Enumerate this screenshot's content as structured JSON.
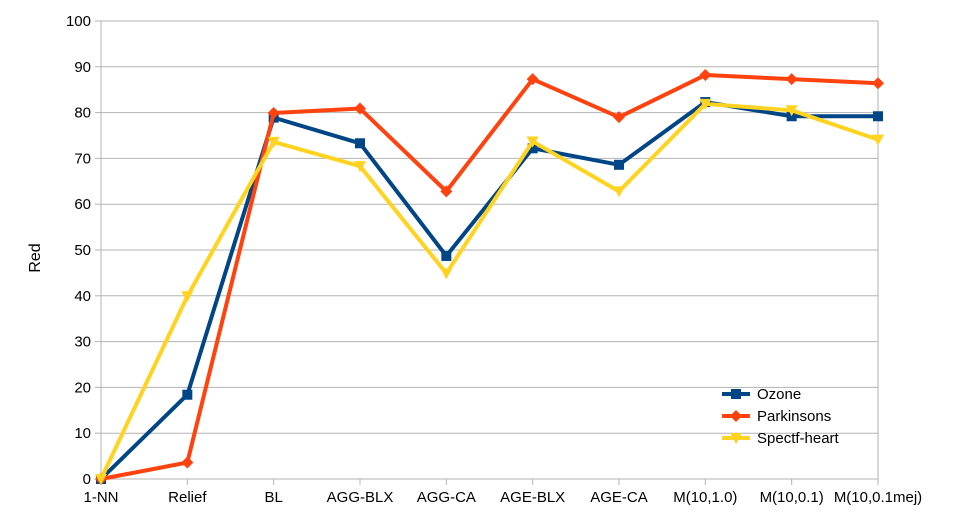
{
  "chart_data": {
    "type": "line",
    "title": "",
    "xlabel": "",
    "ylabel": "Red",
    "ylim": [
      0,
      100
    ],
    "yticks": [
      0,
      10,
      20,
      30,
      40,
      50,
      60,
      70,
      80,
      90,
      100
    ],
    "grid": "horizontal",
    "legend_position": "bottom-right",
    "categories": [
      "1-NN",
      "Relief",
      "BL",
      "AGG-BLX",
      "AGG-CA",
      "AGE-BLX",
      "AGE-CA",
      "M(10,1.0)",
      "M(10,0.1)",
      "M(10,0.1mej)"
    ],
    "series": [
      {
        "name": "Ozone",
        "color": "#004586",
        "marker": "square",
        "values": [
          0,
          18.4,
          78.9,
          73.3,
          48.7,
          72.2,
          68.6,
          82.3,
          79.2,
          79.2
        ]
      },
      {
        "name": "Parkinsons",
        "color": "#ff420e",
        "marker": "diamond",
        "values": [
          0,
          3.6,
          79.9,
          80.9,
          62.8,
          87.3,
          79.0,
          88.2,
          87.3,
          86.4
        ]
      },
      {
        "name": "Spectf-heart",
        "color": "#ffd320",
        "marker": "triangle-down",
        "values": [
          0,
          39.9,
          73.6,
          68.3,
          44.9,
          73.7,
          62.8,
          81.9,
          80.5,
          74.1
        ]
      }
    ]
  }
}
